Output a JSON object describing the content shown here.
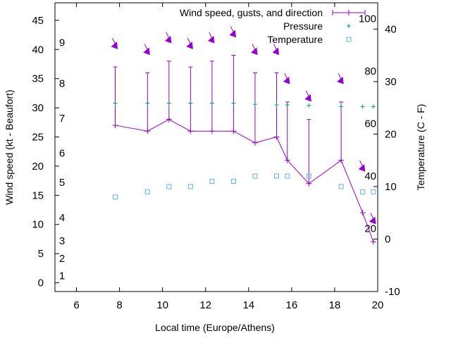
{
  "chart_data": {
    "type": "line",
    "xlabel": "Local time (Europe/Athens)",
    "ylabel": "Wind speed (kt - Beaufort)",
    "y2label": "Temperature (C - F)",
    "xlim": [
      5,
      20
    ],
    "ylim": [
      -1.5,
      48
    ],
    "y2lim": [
      -10,
      45
    ],
    "x_ticks": [
      "6",
      "8",
      "10",
      "12",
      "14",
      "16",
      "18",
      "20"
    ],
    "y_ticks": [
      "0",
      "5",
      "10",
      "15",
      "20",
      "25",
      "30",
      "35",
      "40",
      "45"
    ],
    "y2_ticks": [
      "-10",
      "0",
      "10",
      "20",
      "30",
      "40"
    ],
    "beaufort_labels": [
      {
        "text": "1",
        "y": 1.2
      },
      {
        "text": "2",
        "y": 4.2
      },
      {
        "text": "3",
        "y": 7.2
      },
      {
        "text": "4",
        "y": 11.2
      },
      {
        "text": "5",
        "y": 17.2
      },
      {
        "text": "6",
        "y": 22.2
      },
      {
        "text": "7",
        "y": 28.2
      },
      {
        "text": "8",
        "y": 34.2
      },
      {
        "text": "9",
        "y": 41.2
      }
    ],
    "fahrenheit_labels": [
      {
        "text": "20",
        "y": 2
      },
      {
        "text": "40",
        "y": 12
      },
      {
        "text": "60",
        "y": 22
      },
      {
        "text": "80",
        "y": 32
      },
      {
        "text": "100",
        "y": 42
      }
    ],
    "series": [
      {
        "name": "Wind speed, gusts, and direction",
        "color": "#9400d3",
        "x": [
          7.8,
          9.3,
          10.3,
          11.3,
          12.3,
          13.3,
          14.3,
          15.3,
          15.8,
          16.8,
          18.3,
          19.3,
          19.8
        ],
        "values": [
          27,
          26,
          28,
          26,
          26,
          26,
          24,
          25,
          21,
          17,
          21,
          12,
          7
        ],
        "gusts": [
          37,
          36,
          38,
          37,
          38,
          39,
          36,
          36,
          31,
          28,
          31,
          null,
          null
        ],
        "direction_arrow_y": [
          40.5,
          39.5,
          41.5,
          40.5,
          41.5,
          42.5,
          39.5,
          39.5,
          34.5,
          31.5,
          34.5,
          19.5,
          10.5
        ]
      },
      {
        "name": "Pressure",
        "color": "#009e73",
        "x": [
          7.8,
          9.3,
          10.3,
          11.3,
          12.3,
          13.3,
          14.3,
          15.3,
          15.8,
          16.8,
          18.3,
          19.3,
          19.8
        ],
        "values": [
          30.8,
          30.8,
          30.8,
          30.8,
          30.8,
          30.8,
          30.6,
          30.5,
          30.5,
          30.4,
          30.2,
          30.2,
          30.2
        ]
      },
      {
        "name": "Temperature",
        "color": "#56b4e9",
        "axis": "y2",
        "x": [
          7.8,
          9.3,
          10.3,
          11.3,
          12.3,
          13.3,
          14.3,
          15.3,
          15.8,
          16.8,
          18.3,
          19.3,
          19.8
        ],
        "values": [
          8,
          9,
          10,
          10,
          11,
          11,
          12,
          12,
          12,
          12,
          10,
          9,
          9
        ]
      }
    ]
  }
}
